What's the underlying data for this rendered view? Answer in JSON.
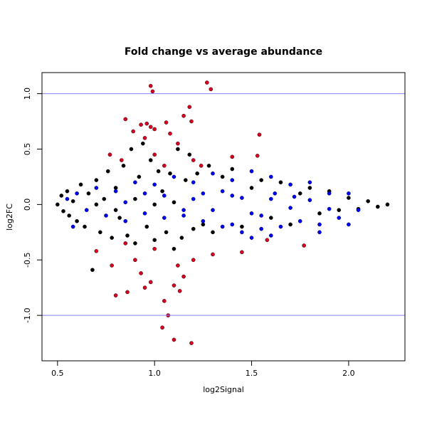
{
  "chart_data": {
    "type": "scatter",
    "title": "Fold change vs average abundance",
    "x_label": "log2Signal",
    "y_label": "log2FC",
    "xlim": [
      0.42,
      2.29
    ],
    "ylim": [
      -1.41,
      1.19
    ],
    "xticks": [
      0.5,
      {
        "value": 1,
        "label": "1.0"
      },
      1.5,
      {
        "value": 2,
        "label": "2.0"
      }
    ],
    "yticks": [
      {
        "value": -1,
        "label": "-1.0"
      },
      -0.5,
      {
        "value": 0,
        "label": "0.0"
      },
      0.5,
      {
        "value": 1,
        "label": "1.0"
      }
    ],
    "hlines": [
      1,
      -1
    ],
    "hline_color": "#8080ff",
    "series": [
      {
        "color": "#000000",
        "x": [
          0.5,
          0.52,
          0.53,
          0.55,
          0.56,
          0.58,
          0.6,
          0.62,
          0.64,
          0.66,
          0.68,
          0.7,
          0.72,
          0.74,
          0.76,
          0.78,
          0.8,
          0.82,
          0.84,
          0.86,
          0.88,
          0.9,
          0.92,
          0.94,
          0.96,
          0.98,
          1.0,
          1.02,
          1.04,
          1.06,
          1.08,
          1.1,
          1.12,
          1.14,
          1.16,
          1.18,
          1.2,
          1.22,
          1.25,
          1.28,
          1.3,
          1.35,
          1.4,
          1.45,
          1.5,
          1.55,
          1.6,
          1.65,
          1.7,
          1.75,
          1.8,
          1.85,
          1.9,
          1.95,
          2.0,
          2.05,
          2.1,
          2.15,
          2.2,
          1.0,
          0.9,
          0.8,
          1.1,
          0.7
        ],
        "values": [
          0.0,
          0.08,
          -0.06,
          0.12,
          -0.1,
          0.03,
          -0.15,
          0.18,
          -0.2,
          0.1,
          -0.59,
          0.22,
          -0.25,
          0.05,
          0.3,
          -0.3,
          0.15,
          -0.12,
          0.35,
          -0.28,
          0.5,
          -0.35,
          0.25,
          0.55,
          -0.2,
          0.4,
          -0.32,
          0.3,
          0.12,
          -0.25,
          0.28,
          -0.4,
          0.5,
          -0.3,
          0.22,
          0.45,
          -0.22,
          0.28,
          -0.18,
          0.35,
          -0.25,
          0.25,
          0.32,
          -0.2,
          0.15,
          0.22,
          -0.12,
          0.2,
          -0.18,
          0.1,
          0.15,
          -0.08,
          0.12,
          -0.05,
          0.06,
          -0.04,
          0.03,
          -0.02,
          0.0,
          0.0,
          0.05,
          -0.05,
          0.02,
          0.0
        ]
      },
      {
        "color": "#0000ff",
        "x": [
          0.55,
          0.58,
          0.6,
          0.65,
          0.7,
          0.75,
          0.8,
          0.85,
          0.9,
          0.95,
          1.0,
          1.05,
          1.1,
          1.15,
          1.2,
          1.25,
          1.3,
          1.35,
          1.4,
          1.45,
          1.5,
          1.55,
          1.6,
          1.65,
          1.7,
          1.75,
          1.8,
          1.85,
          1.9,
          1.95,
          2.0,
          2.05,
          1.2,
          1.3,
          1.4,
          1.5,
          1.6,
          1.7,
          1.8,
          1.9,
          1.25,
          1.35,
          1.45,
          1.55,
          1.62,
          1.72,
          1.05,
          0.95,
          0.85,
          1.15,
          1.6,
          1.5,
          1.85,
          1.4,
          2.0
        ],
        "values": [
          0.05,
          -0.2,
          0.1,
          -0.05,
          0.15,
          -0.1,
          0.12,
          -0.15,
          0.2,
          -0.08,
          0.18,
          -0.12,
          0.25,
          -0.1,
          0.2,
          -0.15,
          0.28,
          -0.2,
          0.22,
          -0.25,
          0.3,
          -0.22,
          0.25,
          -0.2,
          0.18,
          -0.15,
          0.2,
          -0.18,
          0.1,
          -0.12,
          0.1,
          -0.05,
          0.05,
          -0.05,
          0.08,
          -0.08,
          0.05,
          -0.03,
          0.04,
          -0.04,
          0.1,
          0.12,
          0.06,
          -0.1,
          0.1,
          0.07,
          0.08,
          0.1,
          0.02,
          -0.05,
          -0.28,
          -0.3,
          -0.25,
          -0.18,
          -0.18
        ]
      },
      {
        "color": "#d7001e",
        "x": [
          0.98,
          0.99,
          1.27,
          1.29,
          0.85,
          0.93,
          0.96,
          0.98,
          1.0,
          1.06,
          1.18,
          1.15,
          1.19,
          1.08,
          1.54,
          0.89,
          0.95,
          1.12,
          0.77,
          0.83,
          1.0,
          1.05,
          1.2,
          1.24,
          1.4,
          1.53,
          0.8,
          0.86,
          1.05,
          1.07,
          1.04,
          1.1,
          1.19,
          1.1,
          0.95,
          0.98,
          1.13,
          1.15,
          0.78,
          0.9,
          1.2,
          1.0,
          0.85,
          1.3,
          1.45,
          1.77,
          1.58,
          0.7,
          1.12,
          0.93
        ],
        "values": [
          1.07,
          1.02,
          1.1,
          1.04,
          0.77,
          0.72,
          0.73,
          0.7,
          0.68,
          0.74,
          0.88,
          0.8,
          0.75,
          0.64,
          0.63,
          0.66,
          0.6,
          0.55,
          0.45,
          0.4,
          0.45,
          0.35,
          0.4,
          0.35,
          0.43,
          0.44,
          -0.82,
          -0.79,
          -0.87,
          -1.0,
          -1.11,
          -1.22,
          -1.25,
          -0.73,
          -0.75,
          -0.7,
          -0.78,
          -0.65,
          -0.55,
          -0.5,
          -0.5,
          -0.4,
          -0.35,
          -0.45,
          -0.43,
          -0.37,
          -0.32,
          -0.42,
          -0.55,
          -0.62
        ]
      }
    ]
  }
}
